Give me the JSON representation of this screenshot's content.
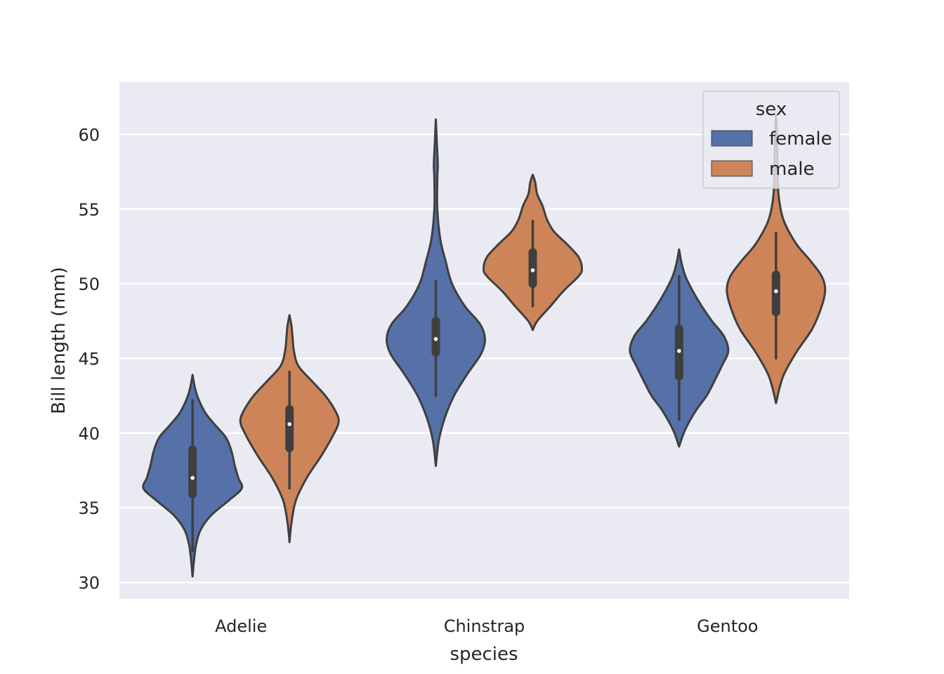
{
  "chart_data": {
    "type": "violin",
    "xlabel": "species",
    "ylabel": "Bill length (mm)",
    "ylim": [
      28.9,
      63.5
    ],
    "yticks": [
      30,
      35,
      40,
      45,
      50,
      55,
      60
    ],
    "categories": [
      "Adelie",
      "Chinstrap",
      "Gentoo"
    ],
    "grid": true,
    "legend": {
      "title": "sex",
      "placement": "top-right",
      "entries": [
        {
          "label": "female",
          "color": "#5571a8"
        },
        {
          "label": "male",
          "color": "#ce8459"
        }
      ]
    },
    "series": [
      {
        "name": "female",
        "color": "#5571a8",
        "violins": [
          {
            "category": "Adelie",
            "min": 32.1,
            "q1": 35.9,
            "median": 37.0,
            "q3": 38.9,
            "max": 42.2,
            "kde_min": 30.4,
            "kde_max": 43.9,
            "density": [
              [
                30.4,
                0.0
              ],
              [
                31.5,
                0.03
              ],
              [
                32.5,
                0.07
              ],
              [
                33.5,
                0.16
              ],
              [
                34.5,
                0.38
              ],
              [
                35.5,
                0.74
              ],
              [
                36.3,
                1.0
              ],
              [
                37.0,
                0.93
              ],
              [
                37.8,
                0.86
              ],
              [
                38.8,
                0.79
              ],
              [
                39.7,
                0.68
              ],
              [
                40.5,
                0.47
              ],
              [
                41.3,
                0.27
              ],
              [
                42.2,
                0.13
              ],
              [
                43.0,
                0.05
              ],
              [
                43.9,
                0.0
              ]
            ]
          },
          {
            "category": "Chinstrap",
            "min": 42.5,
            "q1": 45.4,
            "median": 46.3,
            "q3": 47.5,
            "max": 50.2,
            "kde_min": 37.8,
            "kde_max": 61.0,
            "density": [
              [
                37.8,
                0.0
              ],
              [
                39.5,
                0.06
              ],
              [
                41.0,
                0.18
              ],
              [
                42.5,
                0.37
              ],
              [
                44.0,
                0.65
              ],
              [
                45.3,
                0.92
              ],
              [
                46.3,
                1.0
              ],
              [
                47.3,
                0.9
              ],
              [
                48.5,
                0.59
              ],
              [
                50.0,
                0.33
              ],
              [
                51.5,
                0.2
              ],
              [
                53.0,
                0.09
              ],
              [
                55.0,
                0.03
              ],
              [
                57.0,
                0.03
              ],
              [
                58.0,
                0.04
              ],
              [
                59.5,
                0.02
              ],
              [
                61.0,
                0.0
              ]
            ]
          },
          {
            "category": "Gentoo",
            "min": 40.9,
            "q1": 43.8,
            "median": 45.5,
            "q3": 47.0,
            "max": 50.5,
            "kde_min": 39.1,
            "kde_max": 52.3,
            "density": [
              [
                39.1,
                0.0
              ],
              [
                40.2,
                0.12
              ],
              [
                41.5,
                0.34
              ],
              [
                42.5,
                0.56
              ],
              [
                43.5,
                0.72
              ],
              [
                44.5,
                0.87
              ],
              [
                45.5,
                1.0
              ],
              [
                46.5,
                0.91
              ],
              [
                47.5,
                0.67
              ],
              [
                48.5,
                0.46
              ],
              [
                49.5,
                0.28
              ],
              [
                50.5,
                0.13
              ],
              [
                51.4,
                0.05
              ],
              [
                52.3,
                0.0
              ]
            ]
          }
        ]
      },
      {
        "name": "male",
        "color": "#ce8459",
        "violins": [
          {
            "category": "Adelie",
            "min": 36.3,
            "q1": 39.0,
            "median": 40.6,
            "q3": 41.6,
            "max": 44.1,
            "kde_min": 32.7,
            "kde_max": 47.9,
            "density": [
              [
                32.7,
                0.0
              ],
              [
                34.0,
                0.04
              ],
              [
                35.5,
                0.13
              ],
              [
                37.0,
                0.35
              ],
              [
                38.5,
                0.65
              ],
              [
                40.0,
                0.91
              ],
              [
                40.8,
                1.0
              ],
              [
                41.5,
                0.93
              ],
              [
                42.5,
                0.73
              ],
              [
                43.5,
                0.45
              ],
              [
                44.5,
                0.18
              ],
              [
                45.5,
                0.09
              ],
              [
                46.5,
                0.06
              ],
              [
                47.2,
                0.04
              ],
              [
                47.9,
                0.0
              ]
            ]
          },
          {
            "category": "Chinstrap",
            "min": 48.5,
            "q1": 50.0,
            "median": 50.9,
            "q3": 52.1,
            "max": 54.2,
            "kde_min": 46.9,
            "kde_max": 57.3,
            "density": [
              [
                46.9,
                0.0
              ],
              [
                47.5,
                0.09
              ],
              [
                48.5,
                0.36
              ],
              [
                49.5,
                0.62
              ],
              [
                50.5,
                0.93
              ],
              [
                51.0,
                1.0
              ],
              [
                51.8,
                0.93
              ],
              [
                52.7,
                0.68
              ],
              [
                53.5,
                0.43
              ],
              [
                54.3,
                0.29
              ],
              [
                55.2,
                0.2
              ],
              [
                56.0,
                0.09
              ],
              [
                56.8,
                0.05
              ],
              [
                57.3,
                0.0
              ]
            ]
          },
          {
            "category": "Gentoo",
            "min": 45.0,
            "q1": 48.1,
            "median": 49.5,
            "q3": 50.6,
            "max": 53.4,
            "kde_min": 42.0,
            "kde_max": 61.3,
            "density": [
              [
                42.0,
                0.0
              ],
              [
                43.0,
                0.07
              ],
              [
                44.0,
                0.17
              ],
              [
                45.5,
                0.43
              ],
              [
                47.0,
                0.74
              ],
              [
                48.5,
                0.93
              ],
              [
                49.6,
                1.0
              ],
              [
                50.5,
                0.93
              ],
              [
                51.5,
                0.71
              ],
              [
                52.5,
                0.45
              ],
              [
                53.5,
                0.26
              ],
              [
                54.5,
                0.13
              ],
              [
                56.0,
                0.05
              ],
              [
                58.0,
                0.03
              ],
              [
                60.0,
                0.02
              ],
              [
                61.3,
                0.0
              ]
            ]
          }
        ]
      }
    ]
  }
}
